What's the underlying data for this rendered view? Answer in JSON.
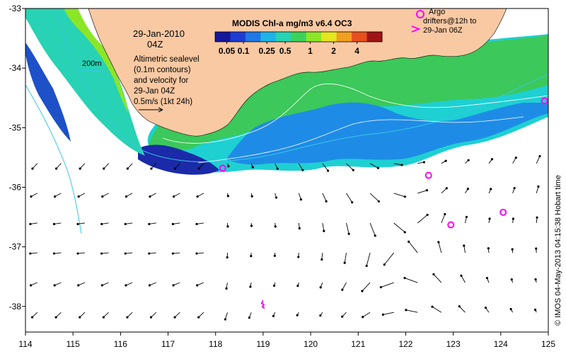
{
  "map": {
    "date": "29-Jan-2010",
    "time": "04Z",
    "colorbar_title": "MODIS Chl-a mg/m3 v6.4 OC3",
    "colorbar_ticks": [
      "0.05",
      "0.1",
      "0.25",
      "0.5",
      "1",
      "2",
      "4"
    ],
    "colorbar_colors": [
      "#16169a",
      "#1e3cd2",
      "#1e78e6",
      "#1eb4e6",
      "#28d2b4",
      "#3cd25a",
      "#8ce628",
      "#e6e61e",
      "#f0a01e",
      "#e6501e",
      "#a01414"
    ],
    "isobath_label": "200m",
    "isobath_color": "#37c8e6",
    "land_color": "#f9c9a3",
    "description_lines": [
      "Altimetric sealevel",
      "(0.1m contours)",
      "and velocity for",
      "29-Jan 04Z",
      "0.5m/s (1kt 24h)"
    ],
    "argo_legend_lines": [
      "Argo",
      "drifters@12h to",
      "29-Jan 06Z"
    ],
    "argo_color": "#ff00ff",
    "credit": "© IMOS 04-May-2013 04:15:38 Hobart time",
    "x_ticks": [
      "114",
      "115",
      "116",
      "117",
      "118",
      "119",
      "120",
      "121",
      "122",
      "123",
      "124",
      "125"
    ],
    "y_ticks": [
      "-33",
      "-34",
      "-35",
      "-36",
      "-37",
      "-38"
    ],
    "argo_floats": [
      {
        "lon": 118.15,
        "lat": -35.68
      },
      {
        "lon": 122.48,
        "lat": -35.8
      },
      {
        "lon": 122.95,
        "lat": -36.63
      },
      {
        "lon": 124.05,
        "lat": -36.42
      },
      {
        "lon": 124.92,
        "lat": -34.55
      }
    ]
  }
}
